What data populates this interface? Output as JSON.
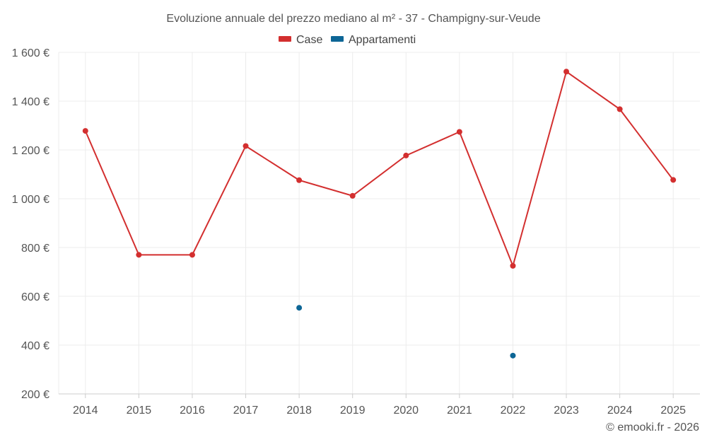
{
  "chart_data": {
    "type": "line",
    "title": "Evoluzione annuale del prezzo mediano al m² - 37 - Champigny-sur-Veude",
    "xlabel": "",
    "ylabel": "",
    "categories": [
      "2014",
      "2015",
      "2016",
      "2017",
      "2018",
      "2019",
      "2020",
      "2021",
      "2022",
      "2023",
      "2024",
      "2025"
    ],
    "ylim": [
      200,
      1600
    ],
    "yticks": [
      200,
      400,
      600,
      800,
      1000,
      1200,
      1400,
      1600
    ],
    "ytick_labels": [
      "200 €",
      "400 €",
      "600 €",
      "800 €",
      "1 000 €",
      "1 200 €",
      "1 400 €",
      "1 600 €"
    ],
    "legend_position": "top-center",
    "grid": true,
    "series": [
      {
        "name": "Case",
        "color": "#d32f2f",
        "values": [
          1278,
          770,
          770,
          1216,
          1076,
          1012,
          1177,
          1274,
          725,
          1521,
          1367,
          1077
        ]
      },
      {
        "name": "Appartamenti",
        "color": "#0d6696",
        "values": [
          null,
          null,
          null,
          null,
          553,
          null,
          null,
          null,
          357,
          null,
          null,
          null
        ]
      }
    ]
  },
  "credit": "© emooki.fr - 2026"
}
